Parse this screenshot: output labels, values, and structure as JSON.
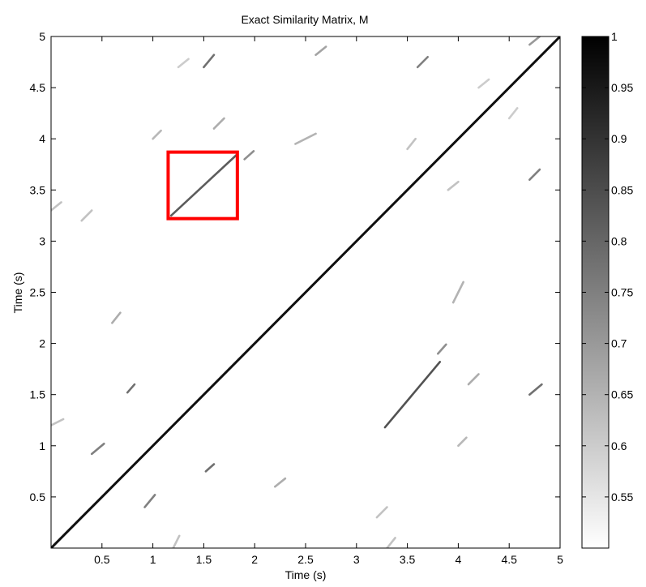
{
  "chart_data": {
    "type": "heatmap",
    "title": "Exact Similarity Matrix, M",
    "xlabel": "Time (s)",
    "ylabel": "Time (s)",
    "xlim": [
      0,
      5
    ],
    "ylim": [
      0,
      5
    ],
    "x_ticks": [
      0.5,
      1,
      1.5,
      2,
      2.5,
      3,
      3.5,
      4,
      4.5,
      5
    ],
    "x_tick_labels": [
      "0.5",
      "1",
      "1.5",
      "2",
      "2.5",
      "3",
      "3.5",
      "4",
      "4.5",
      "5"
    ],
    "y_ticks": [
      0.5,
      1,
      1.5,
      2,
      2.5,
      3,
      3.5,
      4,
      4.5,
      5
    ],
    "y_tick_labels": [
      "0.5",
      "1",
      "1.5",
      "2",
      "2.5",
      "3",
      "3.5",
      "4",
      "4.5",
      "5"
    ],
    "colorbar": {
      "range": [
        0.5,
        1
      ],
      "colors": [
        "#ffffff",
        "#000000"
      ],
      "ticks": [
        0.55,
        0.6,
        0.65,
        0.7,
        0.75,
        0.8,
        0.85,
        0.9,
        0.95,
        1
      ],
      "tick_labels": [
        "0.55",
        "0.6",
        "0.65",
        "0.7",
        "0.75",
        "0.8",
        "0.85",
        "0.9",
        "0.95",
        "1"
      ]
    },
    "highlight_box": {
      "x": [
        1.15,
        1.83
      ],
      "y": [
        3.22,
        3.87
      ],
      "color": "#ff0000"
    },
    "diagonal": {
      "from": [
        0,
        0
      ],
      "to": [
        5,
        5
      ],
      "value": 0.97
    },
    "stripes": [
      {
        "x": [
          1.18,
          1.83
        ],
        "y": [
          3.25,
          3.85
        ],
        "value": 0.82
      },
      {
        "x": [
          3.28,
          3.82
        ],
        "y": [
          1.18,
          1.82
        ],
        "value": 0.84
      },
      {
        "x": [
          0.75,
          0.82
        ],
        "y": [
          1.52,
          1.6
        ],
        "value": 0.78
      },
      {
        "x": [
          1.52,
          1.6
        ],
        "y": [
          0.75,
          0.82
        ],
        "value": 0.78
      },
      {
        "x": [
          0.92,
          1.02
        ],
        "y": [
          0.4,
          0.52
        ],
        "value": 0.75
      },
      {
        "x": [
          0.4,
          0.52
        ],
        "y": [
          0.92,
          1.02
        ],
        "value": 0.75
      },
      {
        "x": [
          1.5,
          1.6
        ],
        "y": [
          4.7,
          4.82
        ],
        "value": 0.78
      },
      {
        "x": [
          4.7,
          4.82
        ],
        "y": [
          1.5,
          1.6
        ],
        "value": 0.78
      },
      {
        "x": [
          3.6,
          3.7
        ],
        "y": [
          4.7,
          4.8
        ],
        "value": 0.75
      },
      {
        "x": [
          4.7,
          4.8
        ],
        "y": [
          3.6,
          3.7
        ],
        "value": 0.75
      },
      {
        "x": [
          1.9,
          1.99
        ],
        "y": [
          3.8,
          3.88
        ],
        "value": 0.72
      },
      {
        "x": [
          3.8,
          3.88
        ],
        "y": [
          1.9,
          1.99
        ],
        "value": 0.72
      },
      {
        "x": [
          2.4,
          2.6
        ],
        "y": [
          3.95,
          4.05
        ],
        "value": 0.65
      },
      {
        "x": [
          3.95,
          4.05
        ],
        "y": [
          2.4,
          2.6
        ],
        "value": 0.65
      },
      {
        "x": [
          4.7,
          4.8
        ],
        "y": [
          4.92,
          5.0
        ],
        "value": 0.7
      },
      {
        "x": [
          2.6,
          2.7
        ],
        "y": [
          4.82,
          4.9
        ],
        "value": 0.68
      },
      {
        "x": [
          4.1,
          4.2
        ],
        "y": [
          1.6,
          1.7
        ],
        "value": 0.66
      },
      {
        "x": [
          1.6,
          1.7
        ],
        "y": [
          4.1,
          4.2
        ],
        "value": 0.66
      },
      {
        "x": [
          0.3,
          0.4
        ],
        "y": [
          3.2,
          3.3
        ],
        "value": 0.62
      },
      {
        "x": [
          3.2,
          3.3
        ],
        "y": [
          0.3,
          0.4
        ],
        "value": 0.62
      },
      {
        "x": [
          2.2,
          2.3
        ],
        "y": [
          0.6,
          0.68
        ],
        "value": 0.66
      },
      {
        "x": [
          0.6,
          0.68
        ],
        "y": [
          2.2,
          2.3
        ],
        "value": 0.66
      },
      {
        "x": [
          0.0,
          0.12
        ],
        "y": [
          1.2,
          1.26
        ],
        "value": 0.62
      },
      {
        "x": [
          1.2,
          1.26
        ],
        "y": [
          0.0,
          0.12
        ],
        "value": 0.62
      },
      {
        "x": [
          0.0,
          0.1
        ],
        "y": [
          3.3,
          3.38
        ],
        "value": 0.62
      },
      {
        "x": [
          3.3,
          3.38
        ],
        "y": [
          0.0,
          0.1
        ],
        "value": 0.62
      },
      {
        "x": [
          1.25,
          1.35
        ],
        "y": [
          4.7,
          4.78
        ],
        "value": 0.6
      },
      {
        "x": [
          4.2,
          4.3
        ],
        "y": [
          4.5,
          4.58
        ],
        "value": 0.6
      },
      {
        "x": [
          4.5,
          4.58
        ],
        "y": [
          4.2,
          4.3
        ],
        "value": 0.6
      },
      {
        "x": [
          3.9,
          4.0
        ],
        "y": [
          3.5,
          3.58
        ],
        "value": 0.62
      },
      {
        "x": [
          3.5,
          3.58
        ],
        "y": [
          3.9,
          4.0
        ],
        "value": 0.62
      },
      {
        "x": [
          1.0,
          1.08
        ],
        "y": [
          4.0,
          4.08
        ],
        "value": 0.64
      },
      {
        "x": [
          4.0,
          4.08
        ],
        "y": [
          1.0,
          1.08
        ],
        "value": 0.64
      }
    ]
  }
}
